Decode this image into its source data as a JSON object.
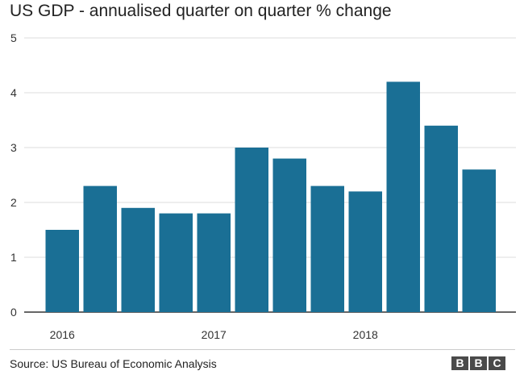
{
  "chart_data": {
    "type": "bar",
    "title": "US GDP - annualised quarter on quarter % change",
    "categories": [
      "2016 Q1",
      "2016 Q2",
      "2016 Q3",
      "2016 Q4",
      "2017 Q1",
      "2017 Q2",
      "2017 Q3",
      "2017 Q4",
      "2018 Q1",
      "2018 Q2",
      "2018 Q3",
      "2018 Q4"
    ],
    "values": [
      1.5,
      2.3,
      1.9,
      1.8,
      1.8,
      3.0,
      2.8,
      2.3,
      2.2,
      4.2,
      3.4,
      2.6
    ],
    "x_tick_labels": [
      {
        "label": "2016",
        "index": 0
      },
      {
        "label": "2017",
        "index": 4
      },
      {
        "label": "2018",
        "index": 8
      }
    ],
    "yticks": [
      "0",
      "1",
      "2",
      "3",
      "4",
      "5"
    ],
    "ylim": [
      0,
      5
    ],
    "xlabel": "",
    "ylabel": "",
    "grid": true,
    "bar_color": "#1a6f95",
    "source": "Source: US Bureau of Economic Analysis"
  },
  "brand": {
    "letters": [
      "B",
      "B",
      "C"
    ],
    "color": "#4a4a4a"
  }
}
